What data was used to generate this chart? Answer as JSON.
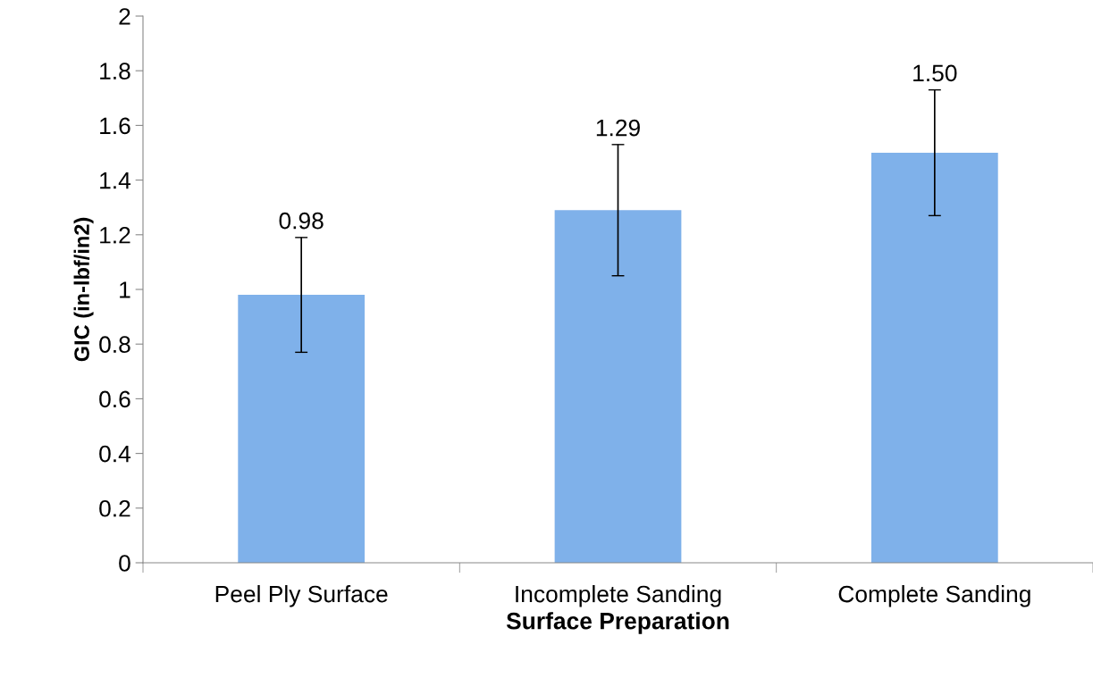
{
  "chart_data": {
    "type": "bar",
    "xlabel": "Surface Preparation",
    "ylabel": "GIC (in-lbf/in2)",
    "categories": [
      "Peel Ply Surface",
      "Incomplete Sanding",
      "Complete Sanding"
    ],
    "values": [
      0.98,
      1.29,
      1.5
    ],
    "errors": [
      0.21,
      0.24,
      0.23
    ],
    "value_labels": [
      "0.98",
      "1.29",
      "1.50"
    ],
    "color": "#7fb1ea",
    "ylim": [
      0,
      2
    ],
    "yticks": [
      0,
      0.2,
      0.4,
      0.6,
      0.8,
      1,
      1.2,
      1.4,
      1.6,
      1.8,
      2
    ],
    "grid": false,
    "legend": false
  }
}
